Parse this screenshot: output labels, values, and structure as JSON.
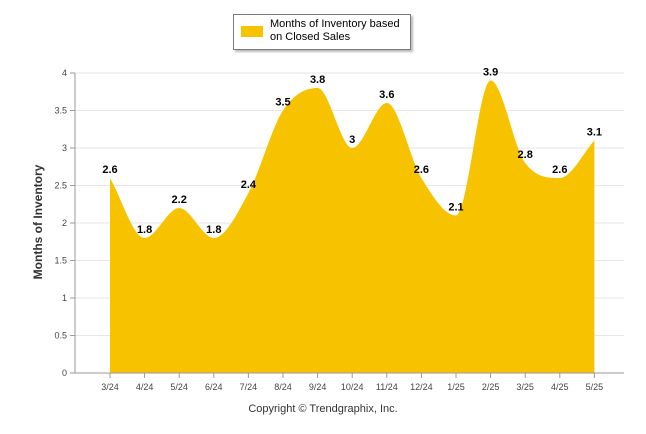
{
  "chart_data": {
    "type": "area",
    "categories": [
      "3/24",
      "4/24",
      "5/24",
      "6/24",
      "7/24",
      "8/24",
      "9/24",
      "10/24",
      "11/24",
      "12/24",
      "1/25",
      "2/25",
      "3/25",
      "4/25",
      "5/25"
    ],
    "series": [
      {
        "name": "Months of Inventory based on Closed Sales",
        "values": [
          2.6,
          1.8,
          2.2,
          1.8,
          2.4,
          3.5,
          3.8,
          3,
          3.6,
          2.6,
          2.1,
          3.9,
          2.8,
          2.6,
          3.1
        ],
        "color": "#F7C200"
      }
    ],
    "data_labels": [
      "2.6",
      "1.8",
      "2.2",
      "1.8",
      "2.4",
      "3.5",
      "3.8",
      "3",
      "3.6",
      "2.6",
      "2.1",
      "3.9",
      "2.8",
      "2.6",
      "3.1"
    ],
    "ylabel": "Months of Inventory",
    "xlabel": "",
    "ylim": [
      0,
      4
    ],
    "yticks": [
      0,
      0.5,
      1,
      1.5,
      2,
      2.5,
      3,
      3.5,
      4
    ],
    "ytick_labels": [
      "0",
      "0.5",
      "1",
      "1.5",
      "2",
      "2.5",
      "3",
      "3.5",
      "4"
    ],
    "grid": true,
    "legend_position": "top-center"
  },
  "legend": {
    "label": "Months of Inventory based on Closed Sales"
  },
  "footer": {
    "copyright": "Copyright © Trendgraphix, Inc."
  },
  "colors": {
    "area": "#F7C200",
    "grid": "#e6e6e6",
    "axis": "#999999"
  }
}
